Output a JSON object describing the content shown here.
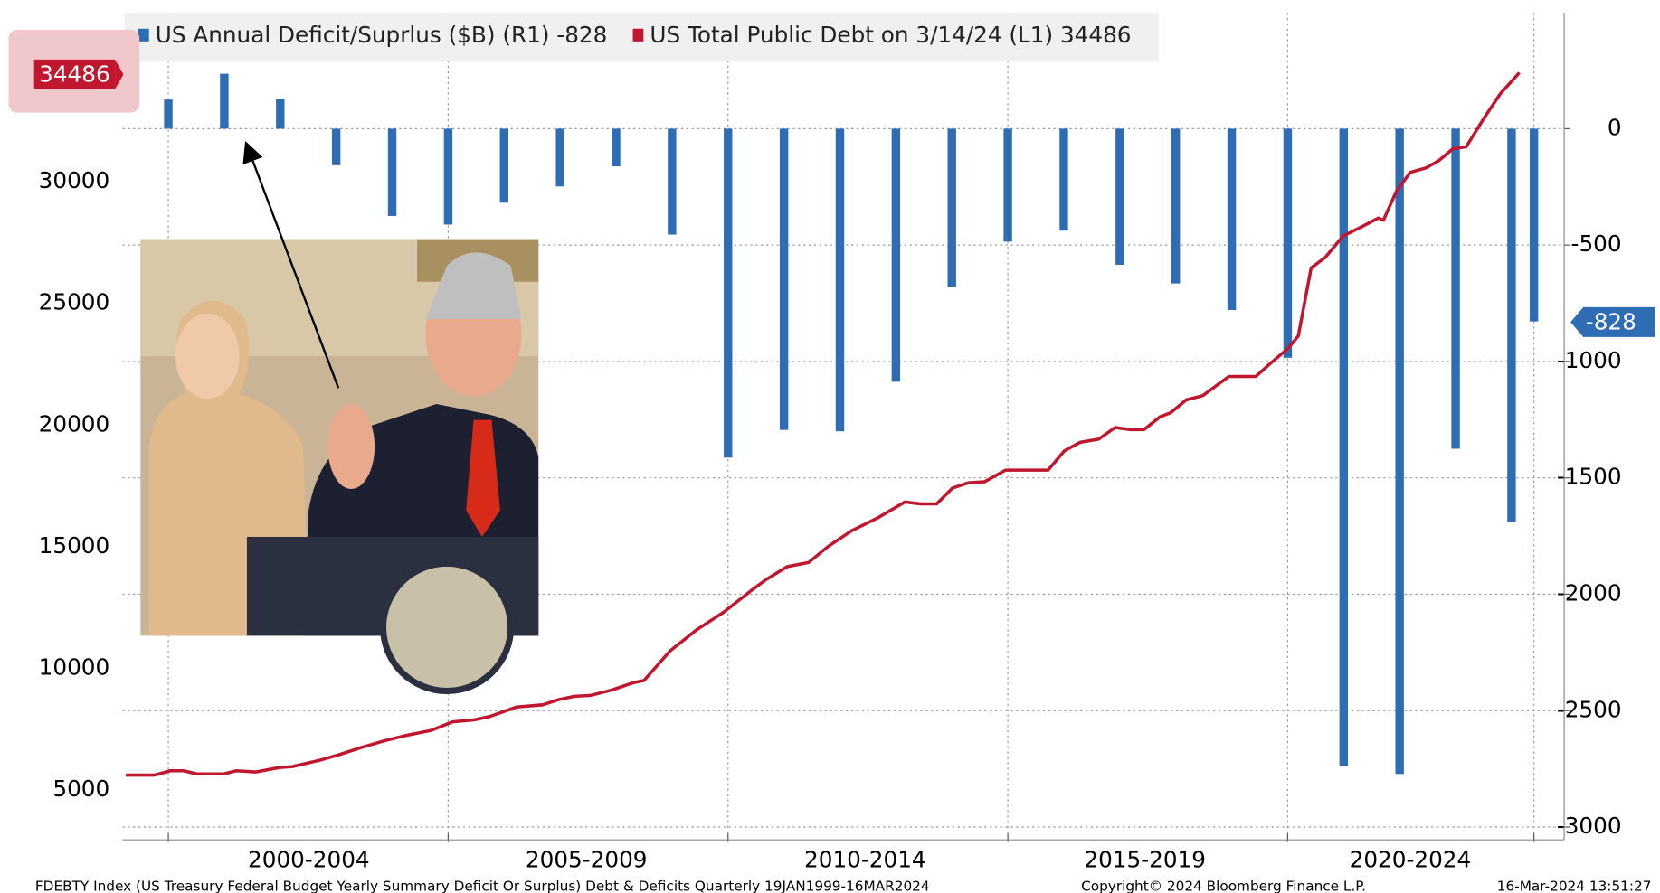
{
  "chart_data": {
    "type": "combo",
    "legend": "top-left",
    "grid": true,
    "footer_left": "FDEBTY Index (US Treasury Federal Budget Yearly Summary Deficit Or Surplus) Debt & Deficits  Quarterly 19JAN1999-16MAR2024",
    "footer_center": "Copyright© 2024 Bloomberg Finance L.P.",
    "footer_right": "16-Mar-2024 13:51:27",
    "xlim": [
      1999.18,
      2024.94
    ],
    "xgrid": [
      2000,
      2005,
      2010,
      2015,
      2020,
      2024.4
    ],
    "xticks": [
      {
        "value": 2002.51,
        "label": "2000-2004"
      },
      {
        "value": 2007.47,
        "label": "2005-2009"
      },
      {
        "value": 2012.45,
        "label": "2010-2014"
      },
      {
        "value": 2017.45,
        "label": "2015-2019"
      },
      {
        "value": 2022.19,
        "label": "2020-2024"
      }
    ],
    "ylim": [
      2950,
      36950
    ],
    "yticks": [
      5000,
      10000,
      15000,
      20000,
      25000,
      30000,
      35000
    ],
    "y2lim": [
      -3055,
      498
    ],
    "y2ticks": [
      0,
      -500,
      -1000,
      -1500,
      -2000,
      -2500,
      -3000
    ],
    "series": [
      {
        "name": "US Annual Deficit/Suprlus ($B) (R1) -828",
        "type": "bar",
        "axis": "y2",
        "color": "#2e6db4",
        "x": [
          2000,
          2001,
          2002,
          2003,
          2004,
          2005,
          2006,
          2007,
          2008,
          2009,
          2010,
          2011,
          2012,
          2013,
          2014,
          2015,
          2016,
          2017,
          2018,
          2019,
          2020,
          2021,
          2022,
          2023,
          2024,
          2024.4
        ],
        "values": [
          125,
          236,
          128,
          -157,
          -375,
          -412,
          -318,
          -248,
          -162,
          -455,
          -1413,
          -1294,
          -1300,
          -1087,
          -680,
          -485,
          -438,
          -585,
          -665,
          -779,
          -984,
          -2740,
          -2772,
          -1375,
          -1690,
          -828
        ]
      },
      {
        "name": "US Total Public Debt on 3/14/24 (L1) 34486",
        "type": "line",
        "axis": "y",
        "color": "#c0172f",
        "x": [
          1999.24,
          1999.75,
          2000.04,
          2000.27,
          2000.51,
          2000.99,
          2001.22,
          2001.56,
          2001.98,
          2002.22,
          2002.7,
          2003.04,
          2003.46,
          2003.84,
          2004.22,
          2004.7,
          2005.08,
          2005.46,
          2005.74,
          2006.22,
          2006.69,
          2006.98,
          2007.26,
          2007.55,
          2007.93,
          2008.31,
          2008.5,
          2008.97,
          2009.45,
          2009.92,
          2010.4,
          2010.68,
          2011.06,
          2011.44,
          2011.79,
          2012.21,
          2012.68,
          2013.16,
          2013.44,
          2013.73,
          2014.01,
          2014.3,
          2014.58,
          2014.96,
          2015.72,
          2016.01,
          2016.29,
          2016.62,
          2016.92,
          2017.19,
          2017.43,
          2017.72,
          2017.91,
          2018.19,
          2018.48,
          2018.95,
          2019.43,
          2019.71,
          2020.0,
          2020.19,
          2020.42,
          2020.67,
          2020.99,
          2021.33,
          2021.62,
          2021.71,
          2021.94,
          2022.19,
          2022.47,
          2022.7,
          2022.95,
          2023.19,
          2023.52,
          2023.8,
          2024.14
        ],
        "values": [
          5610,
          5610,
          5790,
          5790,
          5660,
          5660,
          5790,
          5740,
          5920,
          5960,
          6220,
          6440,
          6750,
          7010,
          7230,
          7450,
          7800,
          7880,
          8020,
          8410,
          8500,
          8720,
          8850,
          8890,
          9110,
          9410,
          9500,
          10730,
          11600,
          12300,
          13170,
          13650,
          14180,
          14350,
          15010,
          15660,
          16190,
          16840,
          16760,
          16760,
          17410,
          17630,
          17670,
          18150,
          18150,
          18940,
          19290,
          19420,
          19900,
          19810,
          19810,
          20340,
          20510,
          21040,
          21210,
          22000,
          22000,
          22570,
          23140,
          23660,
          26460,
          26890,
          27770,
          28160,
          28510,
          28420,
          29600,
          30390,
          30570,
          30870,
          31350,
          31440,
          32660,
          33620,
          34486
        ]
      }
    ]
  }
}
